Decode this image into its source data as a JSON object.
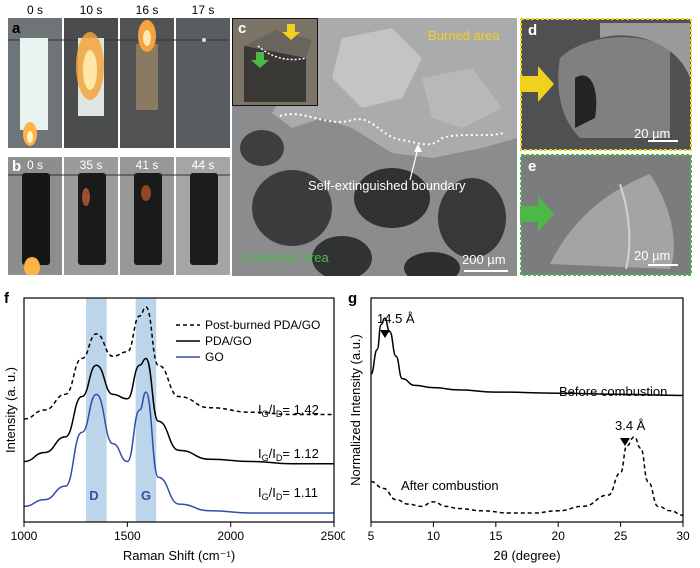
{
  "panels": {
    "a": {
      "label": "a",
      "times": [
        "0 s",
        "10 s",
        "16 s",
        "17 s"
      ]
    },
    "b": {
      "label": "b",
      "times": [
        "0 s",
        "35 s",
        "41 s",
        "44 s"
      ]
    },
    "c": {
      "label": "c",
      "burned_text": "Burned area",
      "unburned_text": "Unburned area",
      "boundary_text": "Self-extinguished boundary",
      "scale_text": "200 µm"
    },
    "d": {
      "label": "d",
      "scale_text": "20 µm"
    },
    "e": {
      "label": "e",
      "scale_text": "20 µm"
    },
    "f": {
      "label": "f",
      "legend": [
        "Post-burned PDA/GO",
        "PDA/GO",
        "GO"
      ],
      "ratio_labels": [
        "1.42",
        "1.12",
        "1.11"
      ],
      "ratio_prefix": "I",
      "ratio_sub_g": "G",
      "ratio_sub_d": "D",
      "band_labels": [
        "D",
        "G"
      ]
    },
    "g": {
      "label": "g",
      "peak_labels": [
        "14.5 Å",
        "3.4 Å"
      ],
      "curve_labels": [
        "Before combustion",
        "After combustion"
      ]
    }
  },
  "colors": {
    "burned_yellow": "#f0d21c",
    "unburned_green": "#4cb848",
    "band_blue": "#a7c7e3",
    "go_blue": "#2f4fa8"
  },
  "chart_data": [
    {
      "type": "line",
      "xlabel": "Raman Shift (cm⁻¹)",
      "ylabel": "Intensity (a. u.)",
      "xlim": [
        1000,
        2500
      ],
      "xticks": [
        "1000",
        "1500",
        "2000",
        "2500"
      ],
      "bands": [
        [
          1300,
          1400
        ],
        [
          1540,
          1640
        ]
      ],
      "series": [
        {
          "name": "Post-burned PDA/GO",
          "style": "dashed",
          "x": [
            1000,
            1100,
            1200,
            1280,
            1350,
            1430,
            1500,
            1560,
            1590,
            1650,
            1750,
            1900,
            2100,
            2300,
            2500
          ],
          "y": [
            0.46,
            0.5,
            0.57,
            0.73,
            0.84,
            0.74,
            0.76,
            0.92,
            0.96,
            0.7,
            0.56,
            0.51,
            0.49,
            0.48,
            0.48
          ]
        },
        {
          "name": "PDA/GO",
          "style": "solid",
          "x": [
            1000,
            1100,
            1200,
            1280,
            1350,
            1430,
            1500,
            1560,
            1590,
            1650,
            1750,
            1900,
            2100,
            2300,
            2500
          ],
          "y": [
            0.27,
            0.31,
            0.38,
            0.56,
            0.7,
            0.57,
            0.55,
            0.7,
            0.73,
            0.45,
            0.32,
            0.28,
            0.27,
            0.26,
            0.26
          ]
        },
        {
          "name": "GO",
          "style": "solid",
          "x": [
            1000,
            1100,
            1200,
            1280,
            1350,
            1430,
            1500,
            1560,
            1590,
            1650,
            1750,
            1900,
            2100,
            2300,
            2500
          ],
          "y": [
            0.07,
            0.1,
            0.16,
            0.4,
            0.57,
            0.35,
            0.27,
            0.5,
            0.58,
            0.2,
            0.08,
            0.05,
            0.04,
            0.04,
            0.04
          ]
        }
      ]
    },
    {
      "type": "line",
      "xlabel": "2θ (degree)",
      "ylabel": "Normalized Intensity (a.u.)",
      "xlim": [
        5,
        30
      ],
      "xticks": [
        "5",
        "10",
        "15",
        "20",
        "25",
        "30"
      ],
      "series": [
        {
          "name": "Before combustion",
          "style": "solid",
          "x": [
            5,
            5.5,
            5.8,
            6.1,
            6.5,
            7.0,
            7.5,
            8.5,
            10,
            12,
            15,
            20,
            25,
            30
          ],
          "y": [
            0.66,
            0.77,
            0.88,
            0.91,
            0.85,
            0.74,
            0.64,
            0.61,
            0.6,
            0.59,
            0.58,
            0.575,
            0.57,
            0.565
          ]
        },
        {
          "name": "After combustion",
          "style": "dashed",
          "x": [
            5,
            6,
            7,
            8,
            9,
            10,
            11,
            12,
            14,
            16,
            18,
            20,
            22,
            24,
            25,
            25.5,
            26.1,
            26.6,
            27.2,
            28,
            29,
            30
          ],
          "y": [
            0.18,
            0.15,
            0.1,
            0.08,
            0.07,
            0.09,
            0.07,
            0.06,
            0.05,
            0.04,
            0.04,
            0.05,
            0.07,
            0.12,
            0.22,
            0.34,
            0.38,
            0.33,
            0.18,
            0.07,
            0.05,
            0.03
          ]
        }
      ]
    }
  ]
}
